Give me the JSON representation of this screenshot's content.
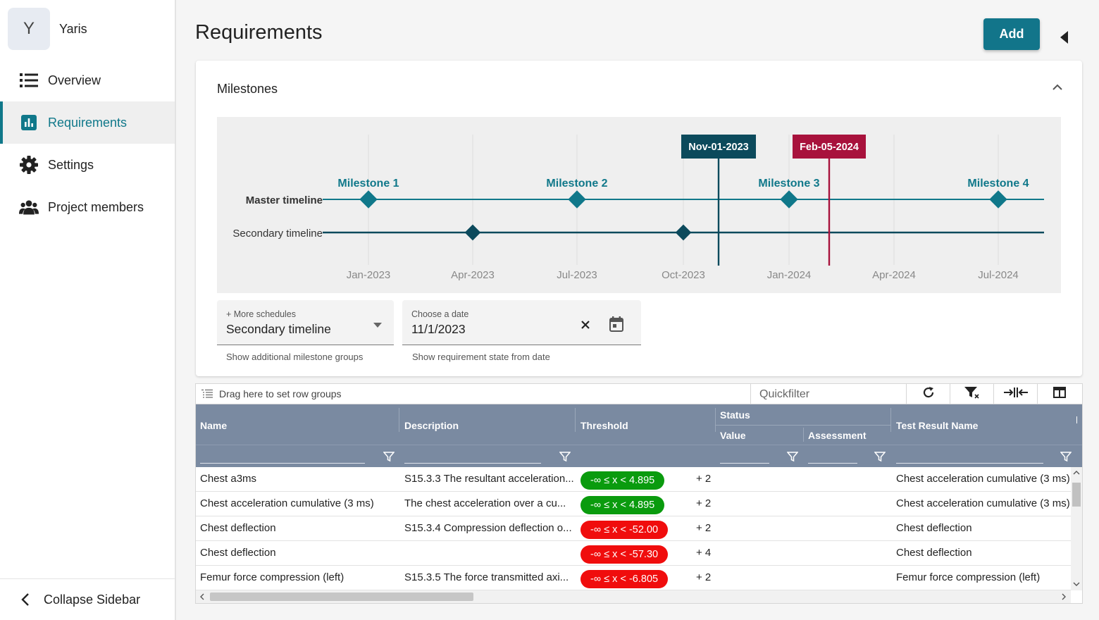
{
  "project": {
    "initial": "Y",
    "name": "Yaris"
  },
  "nav": {
    "items": [
      {
        "label": "Overview",
        "icon": "list-icon"
      },
      {
        "label": "Requirements",
        "icon": "bar-chart-icon"
      },
      {
        "label": "Settings",
        "icon": "gear-icon"
      },
      {
        "label": "Project members",
        "icon": "people-icon"
      }
    ],
    "collapse_label": "Collapse Sidebar"
  },
  "header": {
    "title": "Requirements",
    "add_label": "Add"
  },
  "milestones": {
    "title": "Milestones",
    "timeline": {
      "rows": [
        "Master timeline",
        "Secondary timeline"
      ],
      "x_ticks": [
        "Jan-2023",
        "Apr-2023",
        "Jul-2023",
        "Oct-2023",
        "Jan-2024",
        "Apr-2024",
        "Jul-2024"
      ],
      "master_milestones": [
        "Milestone 1",
        "Milestone 2",
        "Milestone 3",
        "Milestone 4"
      ],
      "markers": [
        {
          "label": "Nov-01-2023",
          "color": "#0c4a5c"
        },
        {
          "label": "Feb-05-2024",
          "color": "#a8123c"
        }
      ]
    },
    "schedules": {
      "label": "+ More schedules",
      "value": "Secondary timeline",
      "helper": "Show additional milestone groups"
    },
    "date": {
      "label": "Choose a date",
      "value": "11/1/2023",
      "helper": "Show requirement state from date"
    }
  },
  "grid": {
    "row_group_placeholder": "Drag here to set row groups",
    "quickfilter_placeholder": "Quickfilter",
    "columns": {
      "name": "Name",
      "description": "Description",
      "threshold": "Threshold",
      "status": "Status",
      "value": "Value",
      "assessment": "Assessment",
      "test_result_name": "Test Result Name"
    },
    "rows": [
      {
        "name": "Chest a3ms",
        "description": "S15.3.3 The resultant acceleration...",
        "threshold": "-∞ ≤ x < 4.895",
        "threshold_status": "green",
        "extra": "+ 2",
        "test_result": "Chest acceleration cumulative (3 ms)"
      },
      {
        "name": "Chest acceleration cumulative (3 ms)",
        "description": "The chest acceleration over a cu...",
        "threshold": "-∞ ≤ x < 4.895",
        "threshold_status": "green",
        "extra": "+ 2",
        "test_result": "Chest acceleration cumulative (3 ms)"
      },
      {
        "name": "Chest deflection",
        "description": "S15.3.4 Compression deflection o...",
        "threshold": "-∞ ≤ x < -52.00",
        "threshold_status": "red",
        "extra": "+ 2",
        "test_result": "Chest deflection"
      },
      {
        "name": "Chest deflection",
        "description": "",
        "threshold": "-∞ ≤ x < -57.30",
        "threshold_status": "red",
        "extra": "+ 4",
        "test_result": "Chest deflection"
      },
      {
        "name": "Femur force compression (left)",
        "description": "S15.3.5 The force transmitted axi...",
        "threshold": "-∞ ≤ x < -6.805",
        "threshold_status": "red",
        "extra": "+ 2",
        "test_result": "Femur force compression (left)"
      }
    ]
  },
  "colors": {
    "accent": "#10788a",
    "grid_header": "#7a8aa1",
    "pass": "#0a9b0e",
    "fail": "#f00d0d"
  }
}
